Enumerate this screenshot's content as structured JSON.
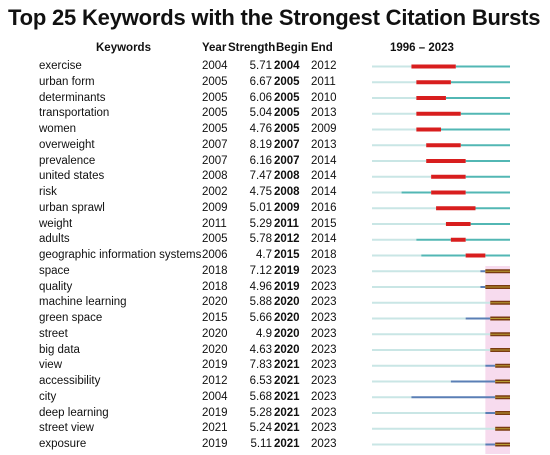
{
  "title": "Top 25 Keywords with the Strongest Citation Bursts",
  "headers": {
    "keywords": "Keywords",
    "year": "Year",
    "strength": "Strength",
    "begin": "Begin",
    "end": "End",
    "timeline": "1996 – 2023"
  },
  "colors": {
    "burst": "#d81e1e",
    "active": "#52b7b4",
    "inactive": "#c9e6e5",
    "burst_recent": "#7a3a10",
    "active_recent": "#b89c33",
    "pre_recent": "#5a7fb5",
    "highlight": "#f7dbee"
  },
  "chart_data": {
    "type": "table",
    "timeline_start": 1996,
    "timeline_end": 2023,
    "columns": [
      "Keywords",
      "Year",
      "Strength",
      "Begin",
      "End"
    ],
    "rows": [
      {
        "keyword": "exercise",
        "year": 2004,
        "strength": "5.71",
        "begin": 2004,
        "end": 2012
      },
      {
        "keyword": "urban form",
        "year": 2005,
        "strength": "6.67",
        "begin": 2005,
        "end": 2011
      },
      {
        "keyword": "determinants",
        "year": 2005,
        "strength": "6.06",
        "begin": 2005,
        "end": 2010
      },
      {
        "keyword": "transportation",
        "year": 2005,
        "strength": "5.04",
        "begin": 2005,
        "end": 2013
      },
      {
        "keyword": "women",
        "year": 2005,
        "strength": "4.76",
        "begin": 2005,
        "end": 2009
      },
      {
        "keyword": "overweight",
        "year": 2007,
        "strength": "8.19",
        "begin": 2007,
        "end": 2013
      },
      {
        "keyword": "prevalence",
        "year": 2007,
        "strength": "6.16",
        "begin": 2007,
        "end": 2014
      },
      {
        "keyword": "united states",
        "year": 2008,
        "strength": "7.47",
        "begin": 2008,
        "end": 2014
      },
      {
        "keyword": "risk",
        "year": 2002,
        "strength": "4.75",
        "begin": 2008,
        "end": 2014
      },
      {
        "keyword": "urban sprawl",
        "year": 2009,
        "strength": "5.01",
        "begin": 2009,
        "end": 2016
      },
      {
        "keyword": "weight",
        "year": 2011,
        "strength": "5.29",
        "begin": 2011,
        "end": 2015
      },
      {
        "keyword": "adults",
        "year": 2005,
        "strength": "5.78",
        "begin": 2012,
        "end": 2014
      },
      {
        "keyword": "geographic information systems",
        "year": 2006,
        "strength": "4.7",
        "begin": 2015,
        "end": 2018
      },
      {
        "keyword": "space",
        "year": 2018,
        "strength": "7.12",
        "begin": 2019,
        "end": 2023
      },
      {
        "keyword": "quality",
        "year": 2018,
        "strength": "4.96",
        "begin": 2019,
        "end": 2023
      },
      {
        "keyword": "machine learning",
        "year": 2020,
        "strength": "5.88",
        "begin": 2020,
        "end": 2023
      },
      {
        "keyword": "green space",
        "year": 2015,
        "strength": "5.66",
        "begin": 2020,
        "end": 2023
      },
      {
        "keyword": "street",
        "year": 2020,
        "strength": "4.9",
        "begin": 2020,
        "end": 2023
      },
      {
        "keyword": "big data",
        "year": 2020,
        "strength": "4.63",
        "begin": 2020,
        "end": 2023
      },
      {
        "keyword": "view",
        "year": 2019,
        "strength": "7.83",
        "begin": 2021,
        "end": 2023
      },
      {
        "keyword": "accessibility",
        "year": 2012,
        "strength": "6.53",
        "begin": 2021,
        "end": 2023
      },
      {
        "keyword": "city",
        "year": 2004,
        "strength": "5.68",
        "begin": 2021,
        "end": 2023
      },
      {
        "keyword": "deep learning",
        "year": 2019,
        "strength": "5.28",
        "begin": 2021,
        "end": 2023
      },
      {
        "keyword": "street view",
        "year": 2021,
        "strength": "5.24",
        "begin": 2021,
        "end": 2023
      },
      {
        "keyword": "exposure",
        "year": 2019,
        "strength": "5.11",
        "begin": 2021,
        "end": 2023
      }
    ]
  }
}
